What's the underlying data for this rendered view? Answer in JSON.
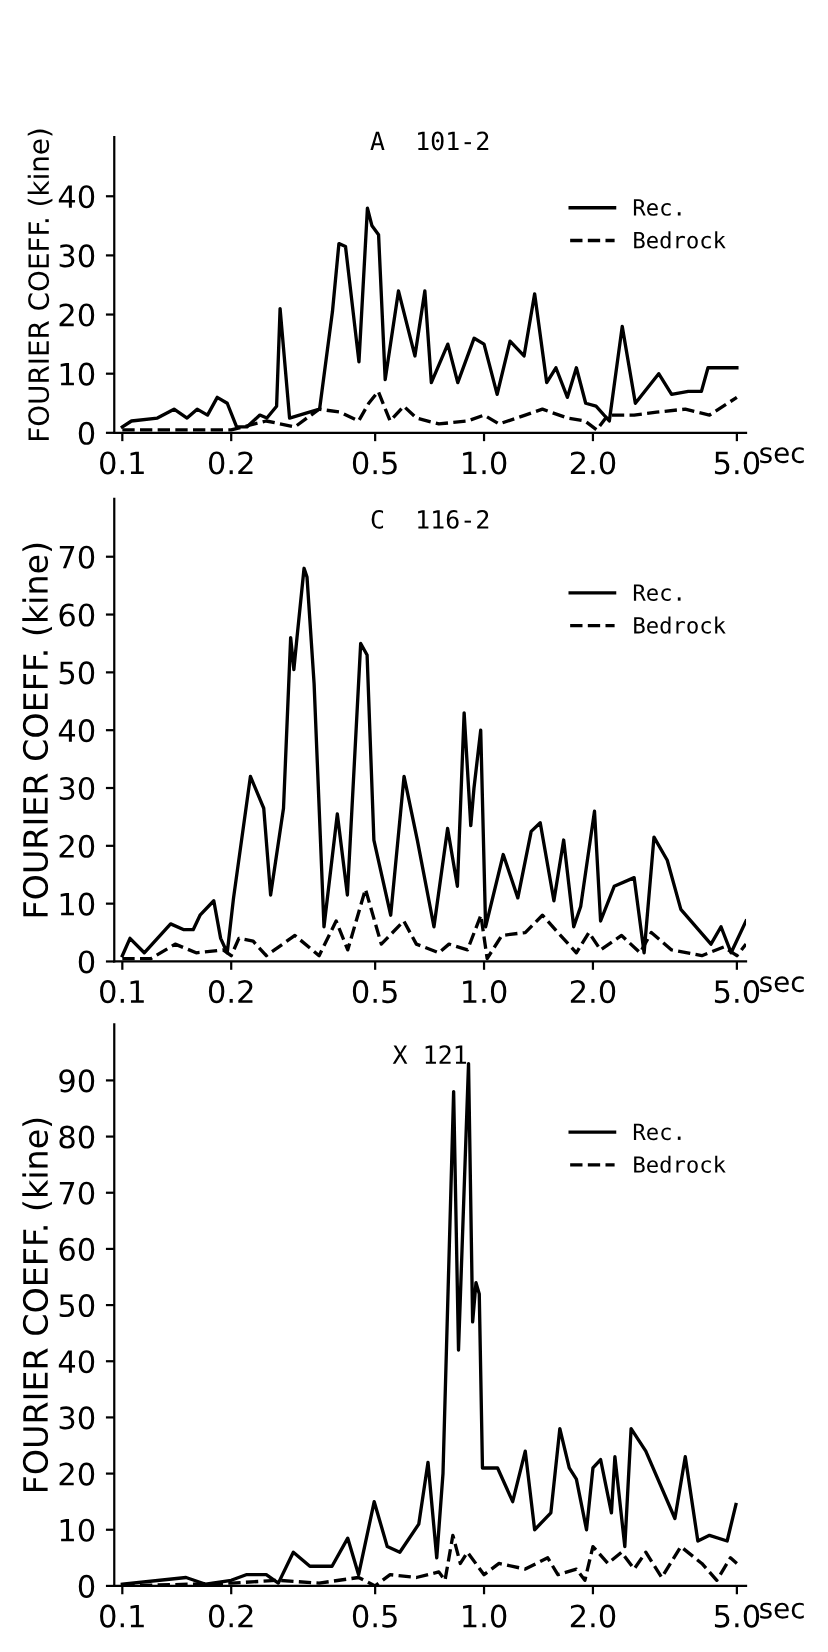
{
  "chart_data": [
    {
      "type": "line",
      "title": "A  101-2",
      "xlabel": "sec",
      "ylabel": "FOURIER COEFF. (kine)",
      "log": "x",
      "xlim": [
        0.095,
        5.3
      ],
      "xticks": [
        {
          "value": 0.1,
          "label": "0.1"
        },
        {
          "value": 0.2,
          "label": "0.2"
        },
        {
          "value": 0.5,
          "label": "0.5"
        },
        {
          "value": 1.0,
          "label": "1.0"
        },
        {
          "value": 2.0,
          "label": "2.0"
        },
        {
          "value": 5.0,
          "label": "5.0"
        }
      ],
      "ylim": [
        0,
        50
      ],
      "yticks": [
        0,
        10,
        20,
        30,
        40
      ],
      "grid": false,
      "legend": "top right",
      "series": [
        {
          "name": "Rec.",
          "color": "#000000",
          "line_style": "solid",
          "x": [
            0.1,
            0.106,
            0.125,
            0.139,
            0.151,
            0.161,
            0.172,
            0.183,
            0.195,
            0.207,
            0.221,
            0.24,
            0.251,
            0.267,
            0.273,
            0.29,
            0.329,
            0.351,
            0.381,
            0.397,
            0.414,
            0.451,
            0.476,
            0.49,
            0.511,
            0.533,
            0.58,
            0.644,
            0.686,
            0.715,
            0.794,
            0.846,
            0.939,
            1.0,
            1.087,
            1.18,
            1.29,
            1.38,
            1.49,
            1.58,
            1.7,
            1.8,
            1.91,
            2.04,
            2.22,
            2.41,
            2.62,
            3.04,
            3.3,
            3.67,
            3.99,
            4.16,
            5.0
          ],
          "values": [
            1,
            2,
            2.5,
            4,
            2.5,
            4,
            3,
            6,
            5,
            1,
            1,
            3,
            2.5,
            4.5,
            21,
            2.5,
            3.5,
            4,
            20.5,
            32,
            31.5,
            12,
            38,
            35,
            33.5,
            9,
            24,
            13,
            24,
            8.5,
            15,
            8.5,
            16,
            15,
            6.5,
            15.5,
            13,
            23.5,
            8.5,
            11,
            6,
            11,
            5,
            4.5,
            2,
            18,
            5,
            10,
            6.5,
            7,
            7,
            11,
            11
          ]
        },
        {
          "name": "Bedrock",
          "color": "#000000",
          "line_style": "dashed",
          "x": [
            0.1,
            0.2,
            0.25,
            0.3,
            0.35,
            0.4,
            0.45,
            0.48,
            0.51,
            0.55,
            0.6,
            0.65,
            0.75,
            0.9,
            1.0,
            1.1,
            1.3,
            1.45,
            1.7,
            1.9,
            2.05,
            2.2,
            2.6,
            3.0,
            3.6,
            4.2,
            5.0
          ],
          "values": [
            0.5,
            0.5,
            2,
            1,
            4,
            3.5,
            2,
            5,
            7,
            2,
            4.5,
            2.5,
            1.5,
            2,
            3,
            1.5,
            3,
            4,
            2.5,
            2,
            0.5,
            3,
            3,
            3.5,
            4,
            3,
            6
          ]
        }
      ]
    },
    {
      "type": "line",
      "title": "C  116-2",
      "xlabel": "sec",
      "ylabel": "FOURIER COEFF. (kine)",
      "log": "x",
      "xlim": [
        0.095,
        5.3
      ],
      "xticks": [
        {
          "value": 0.1,
          "label": "0.1"
        },
        {
          "value": 0.2,
          "label": "0.2"
        },
        {
          "value": 0.5,
          "label": "0.5"
        },
        {
          "value": 1.0,
          "label": "1.0"
        },
        {
          "value": 2.0,
          "label": "2.0"
        },
        {
          "value": 5.0,
          "label": "5.0"
        }
      ],
      "ylim": [
        0,
        80
      ],
      "yticks": [
        0,
        10,
        20,
        30,
        40,
        50,
        60,
        70
      ],
      "grid": false,
      "legend": "top right",
      "series": [
        {
          "name": "Rec.",
          "color": "#000000",
          "line_style": "solid",
          "x": [
            0.1,
            0.105,
            0.115,
            0.136,
            0.148,
            0.157,
            0.164,
            0.179,
            0.187,
            0.195,
            0.203,
            0.226,
            0.246,
            0.257,
            0.279,
            0.292,
            0.298,
            0.304,
            0.318,
            0.324,
            0.339,
            0.361,
            0.393,
            0.419,
            0.456,
            0.475,
            0.496,
            0.552,
            0.601,
            0.654,
            0.727,
            0.793,
            0.844,
            0.881,
            0.919,
            0.938,
            0.979,
            1.01,
            1.13,
            1.24,
            1.35,
            1.43,
            1.56,
            1.66,
            1.77,
            1.85,
            2.02,
            2.1,
            2.29,
            2.6,
            2.77,
            2.95,
            3.21,
            3.5,
            4.24,
            4.52,
            4.82,
            5.3
          ],
          "values": [
            1,
            4,
            1.5,
            6.5,
            5.5,
            5.5,
            8,
            10.5,
            4,
            1.5,
            11,
            32,
            26.5,
            11.5,
            26.5,
            56,
            50.5,
            56,
            68,
            66.5,
            48,
            6,
            25.5,
            11.5,
            55,
            53,
            21,
            8,
            32,
            21,
            6,
            23,
            13,
            43,
            23.5,
            30,
            40,
            6,
            18.5,
            11,
            22.5,
            24,
            10.5,
            21,
            6,
            9.5,
            26,
            7,
            13,
            14.5,
            1.5,
            21.5,
            17.5,
            9,
            3,
            6,
            1.5,
            7
          ]
        },
        {
          "name": "Bedrock",
          "color": "#000000",
          "line_style": "dashed",
          "x": [
            0.1,
            0.12,
            0.14,
            0.16,
            0.19,
            0.2,
            0.21,
            0.23,
            0.25,
            0.3,
            0.35,
            0.39,
            0.42,
            0.47,
            0.52,
            0.6,
            0.65,
            0.75,
            0.8,
            0.9,
            0.98,
            1.02,
            1.12,
            1.3,
            1.45,
            1.6,
            1.8,
            1.95,
            2.1,
            2.4,
            2.7,
            2.9,
            3.3,
            4.0,
            4.6,
            5.0,
            5.3
          ],
          "values": [
            0.5,
            0.5,
            3,
            1.5,
            2,
            1,
            4,
            3.5,
            1,
            4.5,
            1,
            7,
            2,
            12.5,
            3,
            7,
            3,
            1.5,
            3,
            2,
            8,
            0.5,
            4.5,
            5,
            8,
            5,
            1.5,
            5,
            2,
            4.5,
            1.5,
            5,
            2,
            1,
            2.5,
            1,
            3
          ]
        }
      ]
    },
    {
      "type": "line",
      "title": "X 121",
      "xlabel": "sec",
      "ylabel": "FOURIER COEFF. (kine)",
      "log": "x",
      "xlim": [
        0.095,
        5.3
      ],
      "xticks": [
        {
          "value": 0.1,
          "label": "0.1"
        },
        {
          "value": 0.2,
          "label": "0.2"
        },
        {
          "value": 0.5,
          "label": "0.5"
        },
        {
          "value": 1.0,
          "label": "1.0"
        },
        {
          "value": 2.0,
          "label": "2.0"
        },
        {
          "value": 5.0,
          "label": "5.0"
        }
      ],
      "ylim": [
        0,
        100
      ],
      "yticks": [
        0,
        10,
        20,
        30,
        40,
        50,
        60,
        70,
        80,
        90
      ],
      "grid": false,
      "legend": "top right",
      "series": [
        {
          "name": "Rec.",
          "color": "#000000",
          "line_style": "solid",
          "x": [
            0.1,
            0.15,
            0.17,
            0.2,
            0.22,
            0.25,
            0.27,
            0.297,
            0.33,
            0.38,
            0.42,
            0.45,
            0.497,
            0.54,
            0.585,
            0.66,
            0.7,
            0.74,
            0.77,
            0.824,
            0.85,
            0.906,
            0.93,
            0.95,
            0.97,
            0.99,
            1.09,
            1.2,
            1.3,
            1.38,
            1.53,
            1.62,
            1.72,
            1.8,
            1.92,
            2.0,
            2.1,
            2.25,
            2.3,
            2.45,
            2.55,
            2.8,
            3.37,
            3.6,
            3.9,
            4.2,
            4.7,
            4.97
          ],
          "values": [
            0.3,
            1.5,
            0.3,
            1,
            2,
            2,
            0.5,
            6,
            3.5,
            3.5,
            8.5,
            2,
            15,
            7,
            6,
            11,
            22,
            5,
            20,
            88,
            42,
            93,
            47,
            54,
            52,
            21,
            21,
            15,
            24,
            10,
            13,
            28,
            21,
            19,
            10,
            21,
            22.5,
            13,
            23,
            7,
            28,
            24,
            12,
            23,
            8,
            9,
            8,
            14.5
          ]
        },
        {
          "name": "Bedrock",
          "color": "#000000",
          "line_style": "dashed",
          "x": [
            0.1,
            0.2,
            0.27,
            0.35,
            0.45,
            0.5,
            0.55,
            0.65,
            0.75,
            0.78,
            0.82,
            0.86,
            0.9,
            1.0,
            1.1,
            1.3,
            1.5,
            1.6,
            1.8,
            1.9,
            2.0,
            2.2,
            2.4,
            2.6,
            2.8,
            3.1,
            3.5,
            4.0,
            4.4,
            4.8,
            5.0
          ],
          "values": [
            0,
            0.5,
            1,
            0.5,
            1.5,
            0,
            2,
            1.5,
            2.5,
            1,
            9,
            4,
            6,
            2,
            4,
            3,
            5,
            2,
            3,
            1,
            7,
            4,
            6,
            3,
            6,
            1.5,
            7,
            4,
            1,
            5,
            4
          ]
        }
      ]
    }
  ]
}
